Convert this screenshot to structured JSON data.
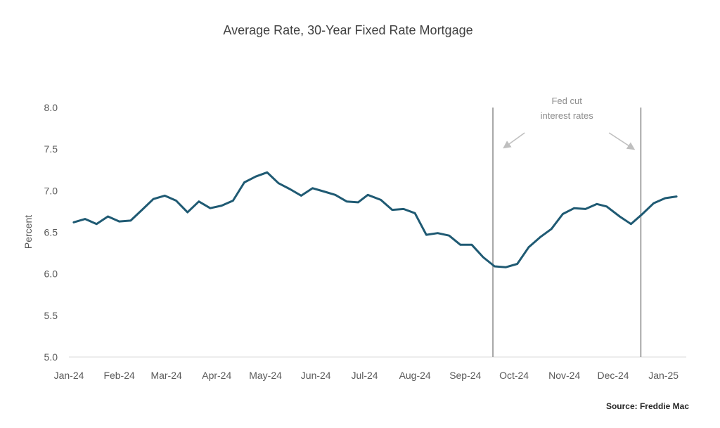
{
  "chart_data": {
    "type": "line",
    "title": "Average Rate, 30-Year Fixed Rate Mortgage",
    "ylabel": "Percent",
    "xlabel": "",
    "ylim": [
      5.0,
      8.0
    ],
    "yticks": [
      "5.0",
      "5.5",
      "6.0",
      "6.5",
      "7.0",
      "7.5",
      "8.0"
    ],
    "xticks": [
      "Jan-24",
      "Feb-24",
      "Mar-24",
      "Apr-24",
      "May-24",
      "Jun-24",
      "Jul-24",
      "Aug-24",
      "Sep-24",
      "Oct-24",
      "Nov-24",
      "Dec-24",
      "Jan-25"
    ],
    "grid": false,
    "line_color": "#1f5a73",
    "series": [
      {
        "x": [
          "2024-01-04",
          "2024-01-11",
          "2024-01-18",
          "2024-01-25",
          "2024-02-01",
          "2024-02-08",
          "2024-02-15",
          "2024-02-22",
          "2024-02-29",
          "2024-03-07",
          "2024-03-14",
          "2024-03-21",
          "2024-03-28",
          "2024-04-04",
          "2024-04-11",
          "2024-04-18",
          "2024-04-25",
          "2024-05-02",
          "2024-05-09",
          "2024-05-16",
          "2024-05-23",
          "2024-05-30",
          "2024-06-06",
          "2024-06-13",
          "2024-06-20",
          "2024-06-27",
          "2024-07-03",
          "2024-07-11",
          "2024-07-18",
          "2024-07-25",
          "2024-08-01",
          "2024-08-08",
          "2024-08-15",
          "2024-08-22",
          "2024-08-29",
          "2024-09-05",
          "2024-09-12",
          "2024-09-19",
          "2024-09-26",
          "2024-10-03",
          "2024-10-10",
          "2024-10-17",
          "2024-10-24",
          "2024-10-31",
          "2024-11-07",
          "2024-11-14",
          "2024-11-21",
          "2024-11-27",
          "2024-12-05",
          "2024-12-12",
          "2024-12-19",
          "2024-12-26",
          "2025-01-02",
          "2025-01-09"
        ],
        "values": [
          6.62,
          6.66,
          6.6,
          6.69,
          6.63,
          6.64,
          6.77,
          6.9,
          6.94,
          6.88,
          6.74,
          6.87,
          6.79,
          6.82,
          6.88,
          7.1,
          7.17,
          7.22,
          7.09,
          7.02,
          6.94,
          7.03,
          6.99,
          6.95,
          6.87,
          6.86,
          6.95,
          6.89,
          6.77,
          6.78,
          6.73,
          6.47,
          6.49,
          6.46,
          6.35,
          6.35,
          6.2,
          6.09,
          6.08,
          6.12,
          6.32,
          6.44,
          6.54,
          6.72,
          6.79,
          6.78,
          6.84,
          6.81,
          6.69,
          6.6,
          6.72,
          6.85,
          6.91,
          6.93
        ]
      }
    ],
    "annotation": {
      "text_line1": "Fed cut",
      "text_line2": "interest rates",
      "start_date": "2024-09-18",
      "end_date": "2024-12-18",
      "line_color": "#a6a6a6",
      "arrow_color": "#bfbfbf"
    },
    "source": "Source: Freddie Mac"
  }
}
